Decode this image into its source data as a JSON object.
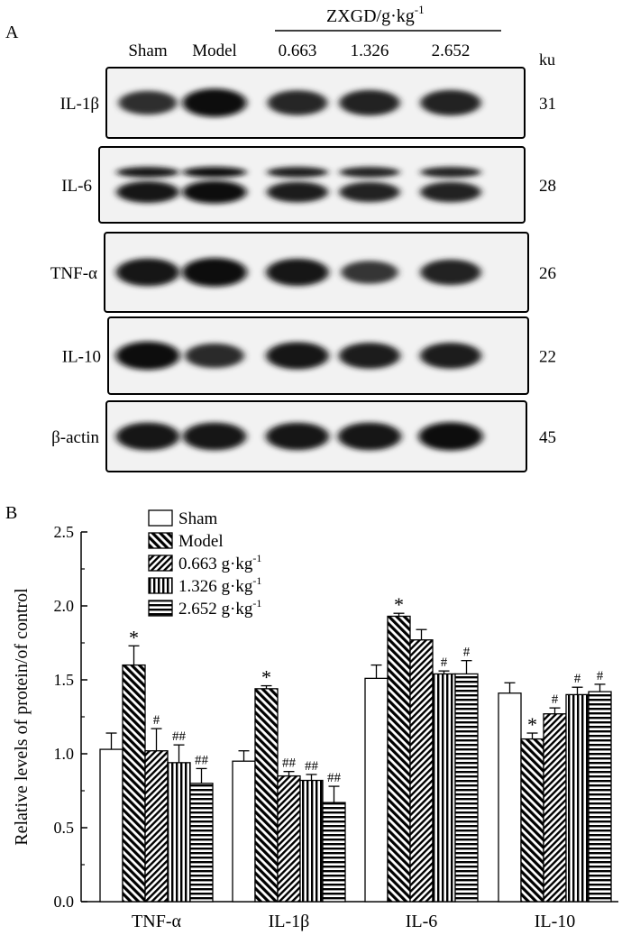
{
  "panel_a": {
    "label": "A",
    "treatment_header": "ZXGD/g·kg",
    "treatment_header_sup": "-1",
    "lanes": [
      "Sham",
      "Model",
      "0.663",
      "1.326",
      "2.652"
    ],
    "unit": "ku",
    "blots": [
      {
        "name": "IL-1β",
        "mw": "31",
        "bands": [
          0.55,
          0.95,
          0.65,
          0.7,
          0.7
        ]
      },
      {
        "name": "IL-6",
        "mw": "28",
        "bands": [
          0.85,
          0.95,
          0.75,
          0.7,
          0.72
        ]
      },
      {
        "name": "TNF-α",
        "mw": "26",
        "bands": [
          0.9,
          1.0,
          0.85,
          0.45,
          0.7
        ]
      },
      {
        "name": "IL-10",
        "mw": "22",
        "bands": [
          0.95,
          0.6,
          0.85,
          0.75,
          0.75
        ]
      },
      {
        "name": "β-actin",
        "mw": "45",
        "bands": [
          0.9,
          0.9,
          0.88,
          0.9,
          0.95
        ]
      }
    ]
  },
  "panel_b": {
    "label": "B"
  },
  "chart_data": {
    "type": "bar",
    "ylabel": "Relative levels of protein/of control",
    "ylim": [
      0,
      2.5
    ],
    "yticks": [
      "0.0",
      "0.5",
      "1.0",
      "1.5",
      "2.0",
      "2.5"
    ],
    "categories": [
      "TNF-α",
      "IL-1β",
      "IL-6",
      "IL-10"
    ],
    "legend_position": "top-left",
    "series": [
      {
        "name": "Sham",
        "sup": "",
        "pattern": "white",
        "values": [
          1.03,
          0.95,
          1.51,
          1.41
        ],
        "errors": [
          0.11,
          0.07,
          0.09,
          0.07
        ],
        "marks": [
          "",
          "",
          "",
          ""
        ]
      },
      {
        "name": "Model",
        "sup": "",
        "pattern": "diag-right",
        "values": [
          1.6,
          1.44,
          1.93,
          1.1
        ],
        "errors": [
          0.13,
          0.02,
          0.02,
          0.04
        ],
        "marks": [
          "*",
          "*",
          "*",
          "*"
        ]
      },
      {
        "name": "0.663 g·kg",
        "sup": "-1",
        "pattern": "diag-left",
        "values": [
          1.02,
          0.85,
          1.77,
          1.27
        ],
        "errors": [
          0.15,
          0.03,
          0.07,
          0.04
        ],
        "marks": [
          "#",
          "##",
          "",
          "#"
        ]
      },
      {
        "name": "1.326 g·kg",
        "sup": "-1",
        "pattern": "vertical",
        "values": [
          0.94,
          0.82,
          1.54,
          1.4
        ],
        "errors": [
          0.12,
          0.04,
          0.02,
          0.05
        ],
        "marks": [
          "##",
          "##",
          "#",
          "#"
        ]
      },
      {
        "name": "2.652 g·kg",
        "sup": "-1",
        "pattern": "horizontal",
        "values": [
          0.8,
          0.67,
          1.54,
          1.42
        ],
        "errors": [
          0.1,
          0.11,
          0.09,
          0.05
        ],
        "marks": [
          "##",
          "##",
          "#",
          "#"
        ]
      }
    ]
  }
}
